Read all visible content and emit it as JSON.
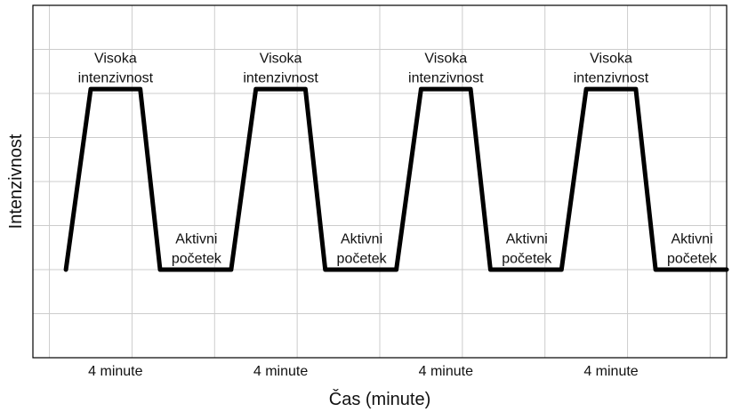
{
  "chart_data": {
    "type": "line",
    "title": "",
    "xlabel": "Čas (minute)",
    "ylabel": "Intenzivnost",
    "grid": true,
    "legend": "none",
    "colors": {
      "line": "#000000",
      "grid": "#cccccc",
      "frame": "#000000"
    },
    "xlim": [
      -1,
      41
    ],
    "ylim": [
      0,
      8
    ],
    "series": [
      {
        "x": [
          1,
          2.5,
          5.5,
          6.7,
          11,
          12.5,
          15.5,
          16.7,
          21,
          22.5,
          25.5,
          26.7,
          31,
          32.5,
          35.5,
          36.7,
          41
        ],
        "values": [
          2,
          6.1,
          6.1,
          2,
          2,
          6.1,
          6.1,
          2,
          2,
          6.1,
          6.1,
          2,
          2,
          6.1,
          6.1,
          2,
          2
        ]
      }
    ],
    "annotations": [
      {
        "lines": [
          "Visoka",
          "intenzivnost"
        ],
        "x": 4,
        "y": 6.7
      },
      {
        "lines": [
          "Visoka",
          "intenzivnost"
        ],
        "x": 14,
        "y": 6.7
      },
      {
        "lines": [
          "Visoka",
          "intenzivnost"
        ],
        "x": 24,
        "y": 6.7
      },
      {
        "lines": [
          "Visoka",
          "intenzivnost"
        ],
        "x": 34,
        "y": 6.7
      },
      {
        "lines": [
          "Aktivni",
          "početek"
        ],
        "x": 8.9,
        "y": 2.6
      },
      {
        "lines": [
          "Aktivni",
          "početek"
        ],
        "x": 18.9,
        "y": 2.6
      },
      {
        "lines": [
          "Aktivni",
          "početek"
        ],
        "x": 28.9,
        "y": 2.6
      },
      {
        "lines": [
          "Aktivni",
          "početek"
        ],
        "x": 38.9,
        "y": 2.6
      }
    ],
    "x_tick_labels": [
      {
        "label": "4 minute",
        "x": 4
      },
      {
        "label": "4 minute",
        "x": 14
      },
      {
        "label": "4 minute",
        "x": 24
      },
      {
        "label": "4 minute",
        "x": 34
      }
    ]
  }
}
